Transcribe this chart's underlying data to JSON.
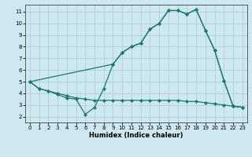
{
  "xlabel": "Humidex (Indice chaleur)",
  "bg_color": "#cde8ee",
  "line_color": "#1a7a6e",
  "xlim": [
    -0.5,
    23.5
  ],
  "ylim": [
    1.5,
    11.6
  ],
  "xticks": [
    0,
    1,
    2,
    3,
    4,
    5,
    6,
    7,
    8,
    9,
    10,
    11,
    12,
    13,
    14,
    15,
    16,
    17,
    18,
    19,
    20,
    21,
    22,
    23
  ],
  "yticks": [
    2,
    3,
    4,
    5,
    6,
    7,
    8,
    9,
    10,
    11
  ],
  "line1_x": [
    0,
    1,
    2,
    3,
    4,
    5,
    6,
    7,
    8,
    9,
    10,
    11,
    12,
    13,
    14,
    15,
    16,
    17,
    18,
    19,
    20,
    21,
    22,
    23
  ],
  "line1_y": [
    5.0,
    4.4,
    4.2,
    3.9,
    3.6,
    3.5,
    2.2,
    2.8,
    4.4,
    6.5,
    7.5,
    8.0,
    8.3,
    9.5,
    10.0,
    11.1,
    11.1,
    10.8,
    11.2,
    9.4,
    7.7,
    5.1,
    2.9,
    2.8
  ],
  "line2_x": [
    0,
    1,
    2,
    3,
    4,
    5,
    6,
    7,
    8,
    9,
    10,
    11,
    12,
    13,
    14,
    15,
    16,
    17,
    18,
    19,
    20,
    21,
    22,
    23
  ],
  "line2_y": [
    5.0,
    4.4,
    4.2,
    4.0,
    3.8,
    3.6,
    3.5,
    3.4,
    3.4,
    3.4,
    3.4,
    3.4,
    3.4,
    3.4,
    3.4,
    3.4,
    3.4,
    3.3,
    3.3,
    3.2,
    3.1,
    3.0,
    2.9,
    2.8
  ],
  "line3_x": [
    0,
    9,
    10,
    11,
    12,
    13,
    14,
    15,
    16,
    17,
    18,
    19,
    20,
    21,
    22,
    23
  ],
  "line3_y": [
    5.0,
    6.5,
    7.5,
    8.0,
    8.3,
    9.5,
    10.0,
    11.1,
    11.1,
    10.8,
    11.2,
    9.4,
    7.7,
    5.1,
    2.9,
    2.8
  ],
  "grid_color": "#aaccd4",
  "xlabel_fontsize": 6.0,
  "tick_fontsize": 5.0
}
